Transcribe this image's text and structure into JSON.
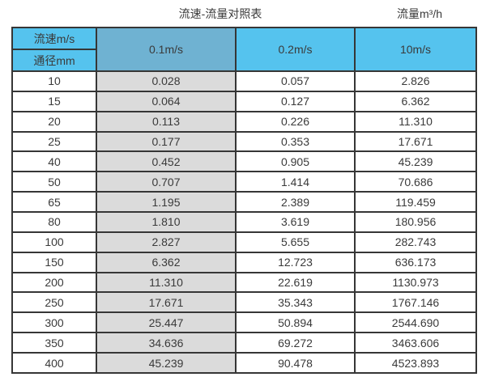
{
  "titles": {
    "main": "流速-流量对照表",
    "unit": "流量m³/h"
  },
  "table": {
    "corner_top": "流速m/s",
    "corner_bottom": "通径mm",
    "columns": [
      "0.1m/s",
      "0.2m/s",
      "10m/s"
    ],
    "rows": [
      [
        "10",
        "0.028",
        "0.057",
        "2.826"
      ],
      [
        "15",
        "0.064",
        "0.127",
        "6.362"
      ],
      [
        "20",
        "0.113",
        "0.226",
        "11.310"
      ],
      [
        "25",
        "0.177",
        "0.353",
        "17.671"
      ],
      [
        "40",
        "0.452",
        "0.905",
        "45.239"
      ],
      [
        "50",
        "0.707",
        "1.414",
        "70.686"
      ],
      [
        "65",
        "1.195",
        "2.389",
        "119.459"
      ],
      [
        "80",
        "1.810",
        "3.619",
        "180.956"
      ],
      [
        "100",
        "2.827",
        "5.655",
        "282.743"
      ],
      [
        "150",
        "6.362",
        "12.723",
        "636.173"
      ],
      [
        "200",
        "11.310",
        "22.619",
        "1130.973"
      ],
      [
        "250",
        "17.671",
        "35.343",
        "1767.146"
      ],
      [
        "300",
        "25.447",
        "50.894",
        "2544.690"
      ],
      [
        "350",
        "34.636",
        "69.272",
        "3463.606"
      ],
      [
        "400",
        "45.239",
        "90.478",
        "4523.893"
      ]
    ]
  },
  "colors": {
    "header_cyan": "#55c3ee",
    "header_blue": "#6fb2d2",
    "column_gray": "#dbdbdb",
    "border": "#363636"
  },
  "chart_data": {
    "type": "table",
    "title": "流速-流量对照表",
    "unit_label": "流量m³/h",
    "columns": [
      "通径mm",
      "0.1m/s",
      "0.2m/s",
      "10m/s"
    ],
    "rows": [
      [
        10,
        0.028,
        0.057,
        2.826
      ],
      [
        15,
        0.064,
        0.127,
        6.362
      ],
      [
        20,
        0.113,
        0.226,
        11.31
      ],
      [
        25,
        0.177,
        0.353,
        17.671
      ],
      [
        40,
        0.452,
        0.905,
        45.239
      ],
      [
        50,
        0.707,
        1.414,
        70.686
      ],
      [
        65,
        1.195,
        2.389,
        119.459
      ],
      [
        80,
        1.81,
        3.619,
        180.956
      ],
      [
        100,
        2.827,
        5.655,
        282.743
      ],
      [
        150,
        6.362,
        12.723,
        636.173
      ],
      [
        200,
        11.31,
        22.619,
        1130.973
      ],
      [
        250,
        17.671,
        35.343,
        1767.146
      ],
      [
        300,
        25.447,
        50.894,
        2544.69
      ],
      [
        350,
        34.636,
        69.272,
        3463.606
      ],
      [
        400,
        45.239,
        90.478,
        4523.893
      ]
    ]
  }
}
